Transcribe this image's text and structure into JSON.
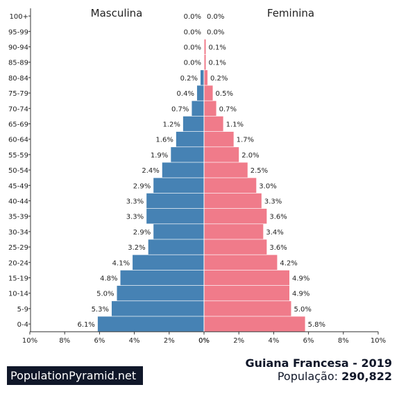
{
  "chart_data": {
    "type": "bar",
    "orientation": "horizontal",
    "population_pyramid": true,
    "categories": [
      "100+",
      "95-99",
      "90-94",
      "85-89",
      "80-84",
      "75-79",
      "70-74",
      "65-69",
      "60-64",
      "55-59",
      "50-54",
      "45-49",
      "40-44",
      "35-39",
      "30-34",
      "25-29",
      "20-24",
      "15-19",
      "10-14",
      "5-9",
      "0-4"
    ],
    "series": [
      {
        "name": "Masculina",
        "color": "#4682b4",
        "values": [
          0.0,
          0.0,
          0.0,
          0.0,
          0.2,
          0.4,
          0.7,
          1.2,
          1.6,
          1.9,
          2.4,
          2.9,
          3.3,
          3.3,
          2.9,
          3.2,
          4.1,
          4.8,
          5.0,
          5.3,
          6.1
        ],
        "labels": [
          "0.0%",
          "0.0%",
          "0.0%",
          "0.0%",
          "0.2%",
          "0.4%",
          "0.7%",
          "1.2%",
          "1.6%",
          "1.9%",
          "2.4%",
          "2.9%",
          "3.3%",
          "3.3%",
          "2.9%",
          "3.2%",
          "4.1%",
          "4.8%",
          "5.0%",
          "5.3%",
          "6.1%"
        ]
      },
      {
        "name": "Feminina",
        "color": "#f07b8a",
        "values": [
          0.0,
          0.0,
          0.1,
          0.1,
          0.2,
          0.5,
          0.7,
          1.1,
          1.7,
          2.0,
          2.5,
          3.0,
          3.3,
          3.6,
          3.4,
          3.6,
          4.2,
          4.9,
          4.9,
          5.0,
          5.8
        ],
        "labels": [
          "0.0%",
          "0.0%",
          "0.1%",
          "0.1%",
          "0.2%",
          "0.5%",
          "0.7%",
          "1.1%",
          "1.7%",
          "2.0%",
          "2.5%",
          "3.0%",
          "3.3%",
          "3.6%",
          "3.4%",
          "3.6%",
          "4.2%",
          "4.9%",
          "4.9%",
          "5.0%",
          "5.8%"
        ]
      }
    ],
    "xlim": [
      -10,
      10
    ],
    "xticks": [
      -10,
      -8,
      -6,
      -4,
      -2,
      0,
      2,
      4,
      6,
      8,
      10
    ],
    "xtick_labels_left": [
      "10%",
      "8%",
      "6%",
      "4%",
      "2%",
      "0%"
    ],
    "xtick_labels_right": [
      "0%",
      "2%",
      "4%",
      "6%",
      "8%",
      "10%"
    ],
    "grid": false,
    "title": "",
    "xlabel": "",
    "ylabel": ""
  },
  "footer": {
    "brand": "PopulationPyramid.net",
    "title": "Guiana Francesa - 2019",
    "population_label": "População:",
    "population_value": "290,822"
  }
}
